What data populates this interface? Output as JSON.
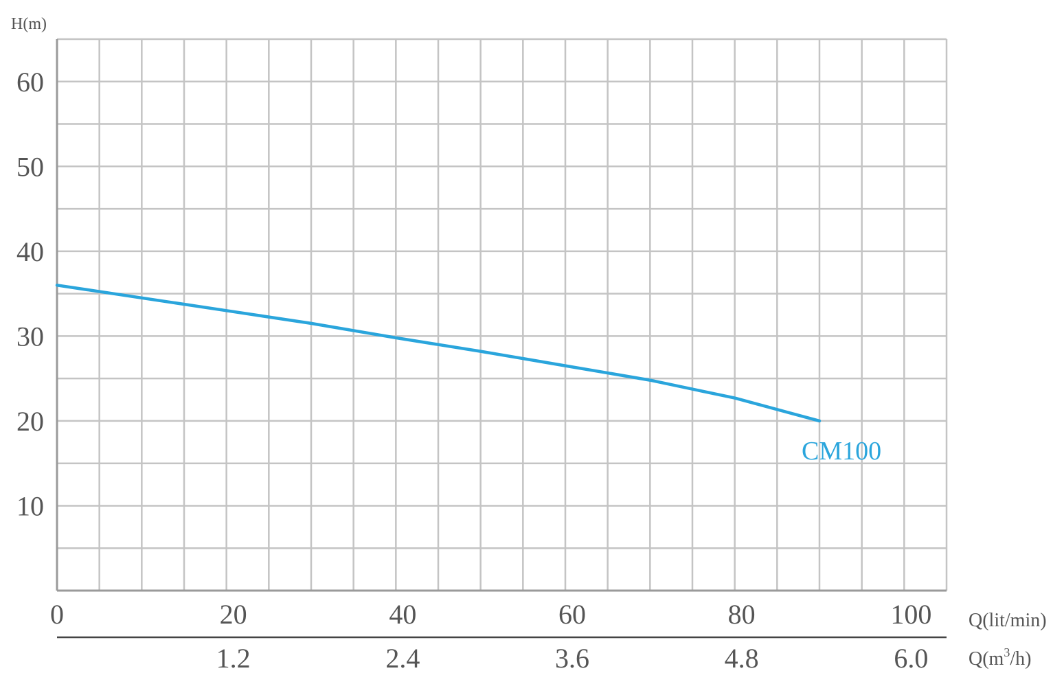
{
  "chart_data": {
    "type": "line",
    "ylabel": "H(m)",
    "xlabel": "Q(lit/min)",
    "xlabel_secondary_prefix": "Q(m",
    "xlabel_secondary_sup": "3",
    "xlabel_secondary_suffix": "/h)",
    "xlim": [
      0,
      105
    ],
    "ylim": [
      0,
      65
    ],
    "x_ticks": [
      "0",
      "20",
      "40",
      "60",
      "80",
      "100"
    ],
    "x_tick_values": [
      0,
      20,
      40,
      60,
      80,
      100
    ],
    "x_secondary_ticks": [
      "1.2",
      "2.4",
      "3.6",
      "4.8",
      "6.0"
    ],
    "x_secondary_tick_values": [
      20,
      40,
      60,
      80,
      100
    ],
    "y_ticks": [
      "10",
      "20",
      "30",
      "40",
      "50",
      "60"
    ],
    "y_tick_values": [
      10,
      20,
      30,
      40,
      50,
      60
    ],
    "x_grid_step": 5,
    "y_grid_step": 5,
    "grid": true,
    "colors": {
      "series": "#2aa5dc",
      "grid": "#c4c4c4",
      "axis": "#9a9a9a",
      "text": "#555555"
    },
    "series": [
      {
        "name": "CM100",
        "x": [
          0,
          10,
          20,
          30,
          40,
          50,
          60,
          70,
          80,
          90
        ],
        "y": [
          36,
          34.5,
          33,
          31.5,
          29.8,
          28.2,
          26.5,
          24.8,
          22.7,
          20
        ]
      }
    ]
  }
}
